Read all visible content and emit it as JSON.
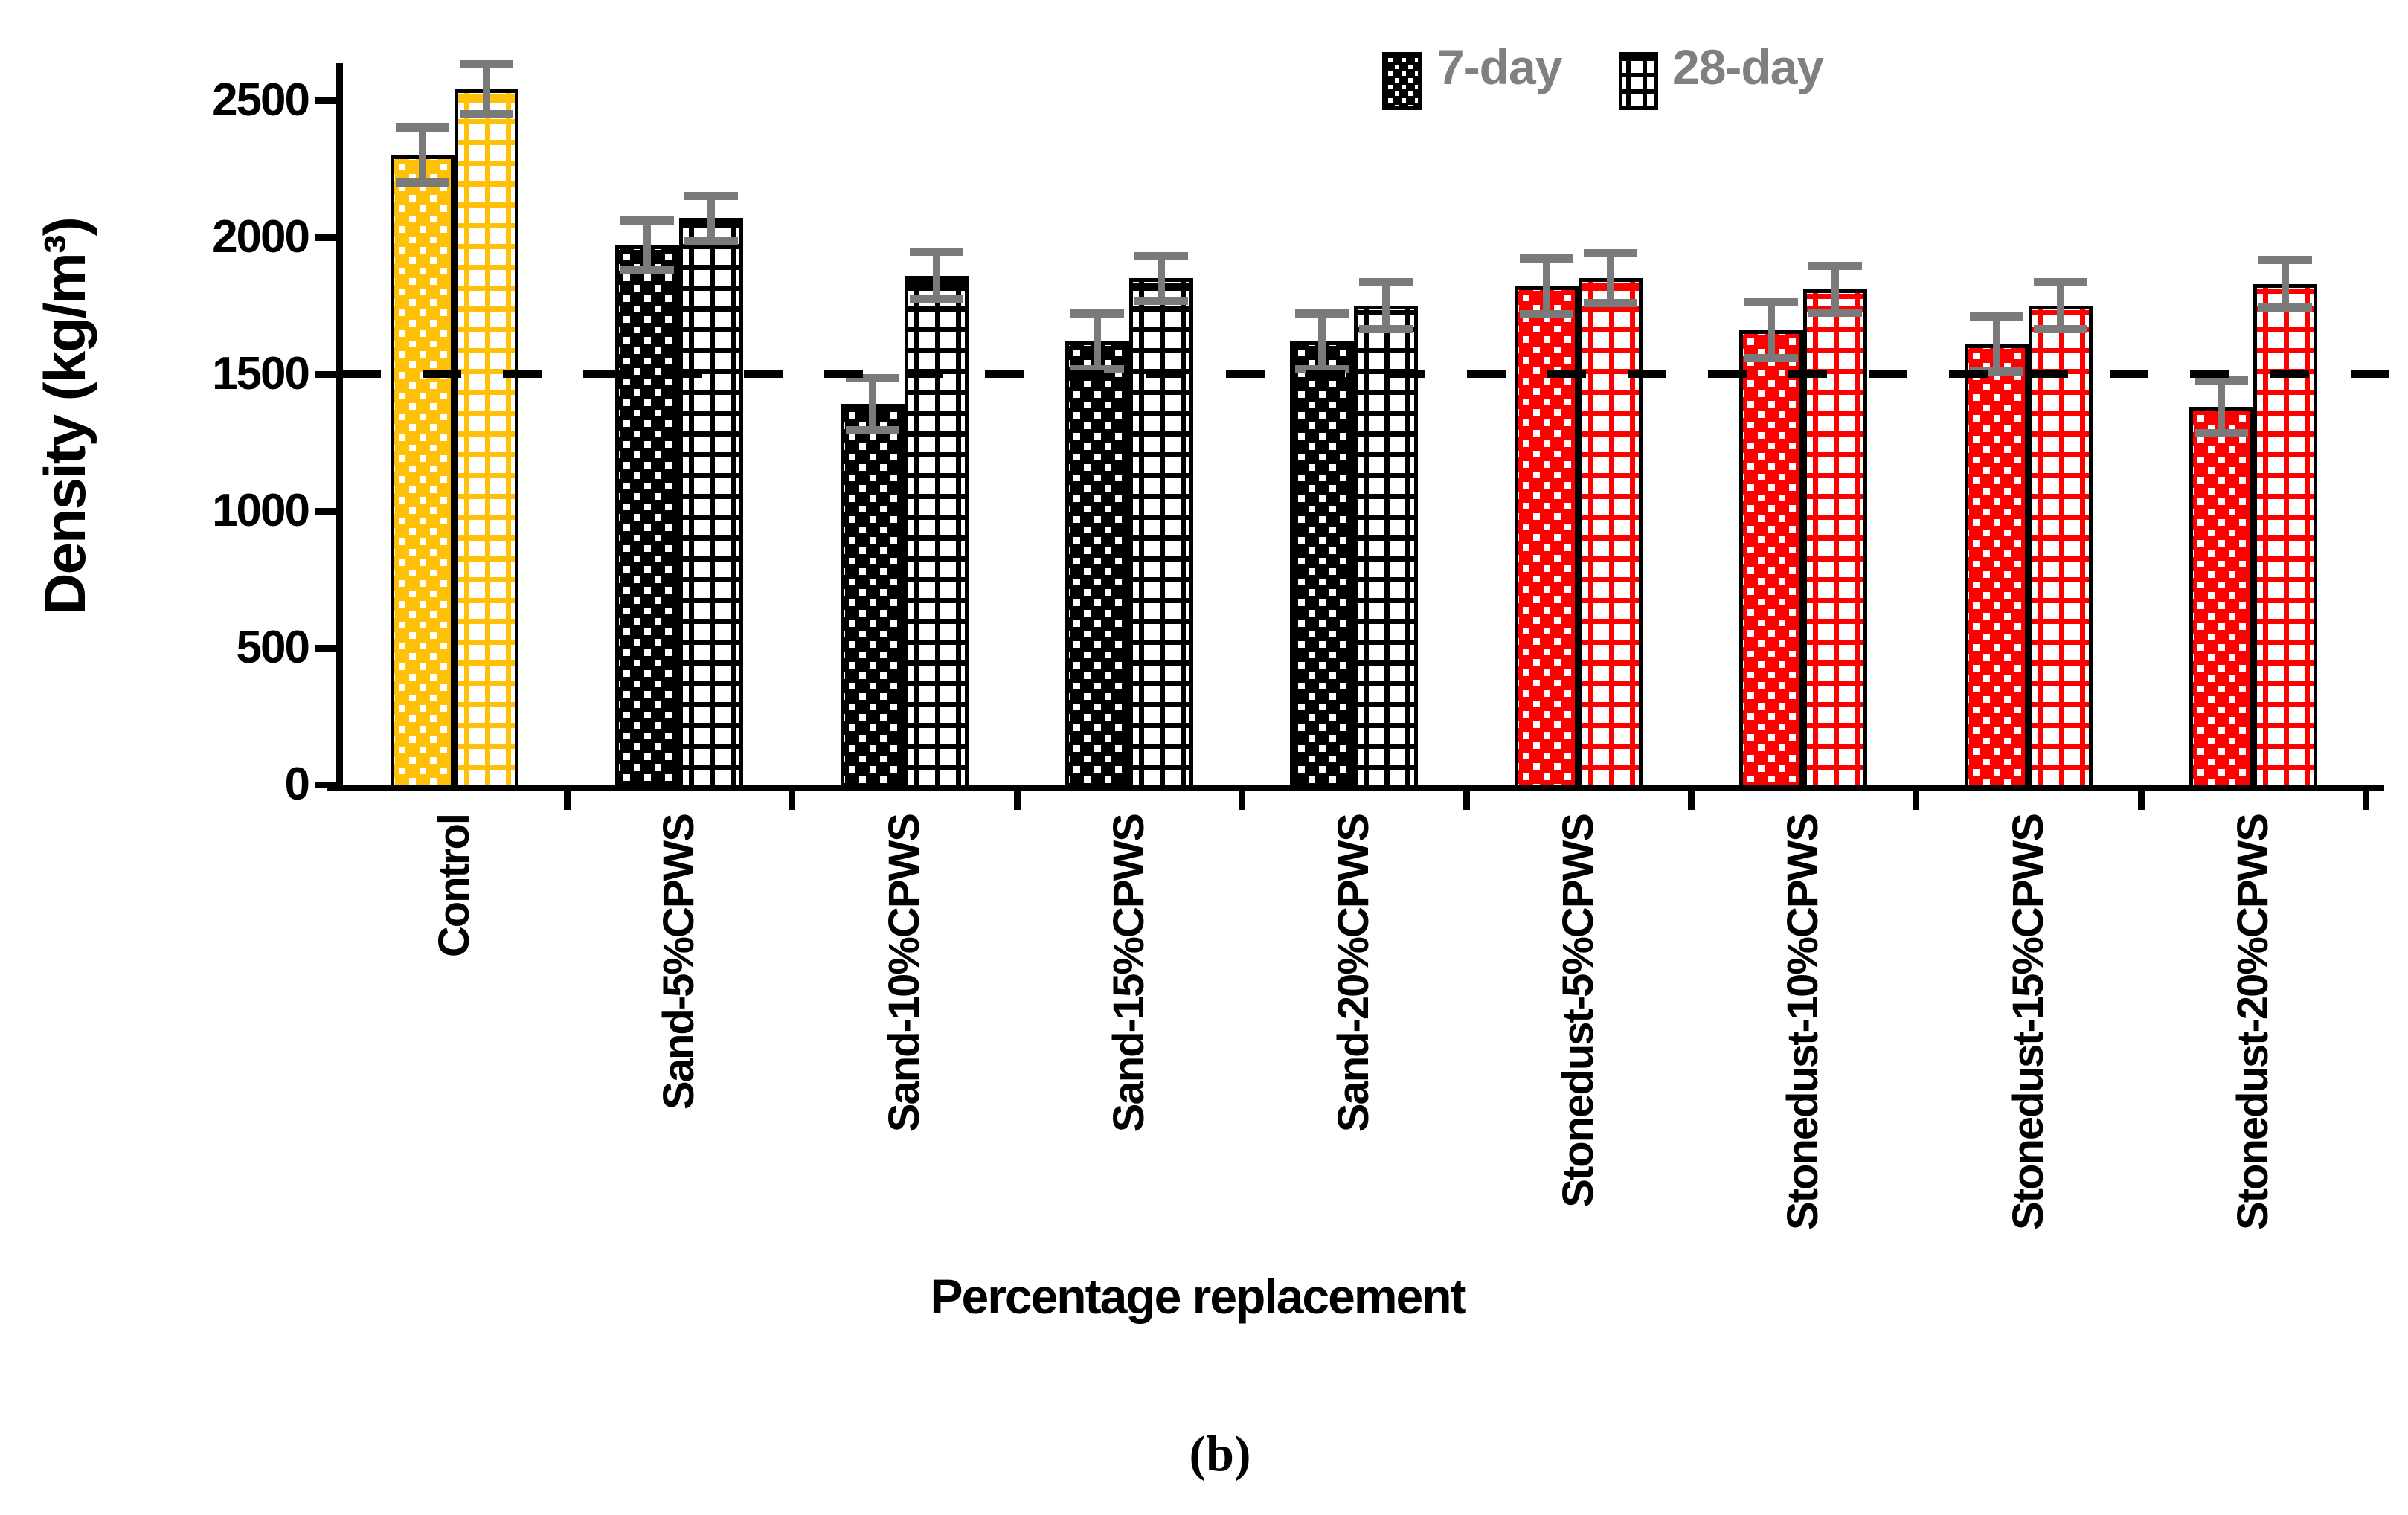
{
  "figure": {
    "caption": "(b)",
    "background": "#FFFFFF"
  },
  "legend": {
    "text_color": "#808080",
    "items": [
      {
        "label": "7-day",
        "pattern": "dots",
        "color": "#000000"
      },
      {
        "label": "28-day",
        "pattern": "grid",
        "color": "#000000"
      }
    ]
  },
  "chart_data": {
    "type": "bar",
    "title": "",
    "xlabel": "Percentage replacement",
    "ylabel": "Density (kg/m³)",
    "ylim": [
      0,
      2700
    ],
    "yticks": [
      0,
      500,
      1000,
      1500,
      2000,
      2500
    ],
    "grid": false,
    "legend_position": "top",
    "reference_line_y": 1500,
    "axis_color": "#000000",
    "error_bar_color": "#7A7A7A",
    "categories": [
      "Control",
      "Sand-5%CPWS",
      "Sand-10%CPWS",
      "Sand-15%CPWS",
      "Sand-20%CPWS",
      "Stonedust-5%CPWS",
      "Stonedust-10%CPWS",
      "Stonedust-15%CPWS",
      "Stonedust-20%CPWS"
    ],
    "category_colors": [
      "#FFC107",
      "#000000",
      "#000000",
      "#000000",
      "#000000",
      "#FE0000",
      "#FE0000",
      "#FE0000",
      "#FE0000"
    ],
    "series": [
      {
        "name": "7-day",
        "pattern": "dots",
        "values": [
          2300,
          1970,
          1390,
          1620,
          1620,
          1820,
          1660,
          1610,
          1380
        ],
        "errors": [
          100,
          90,
          95,
          100,
          100,
          100,
          100,
          100,
          95
        ]
      },
      {
        "name": "28-day",
        "pattern": "grid",
        "values": [
          2540,
          2070,
          1860,
          1850,
          1750,
          1850,
          1810,
          1750,
          1830
        ],
        "errors": [
          90,
          80,
          85,
          80,
          85,
          90,
          85,
          85,
          85
        ]
      }
    ]
  }
}
